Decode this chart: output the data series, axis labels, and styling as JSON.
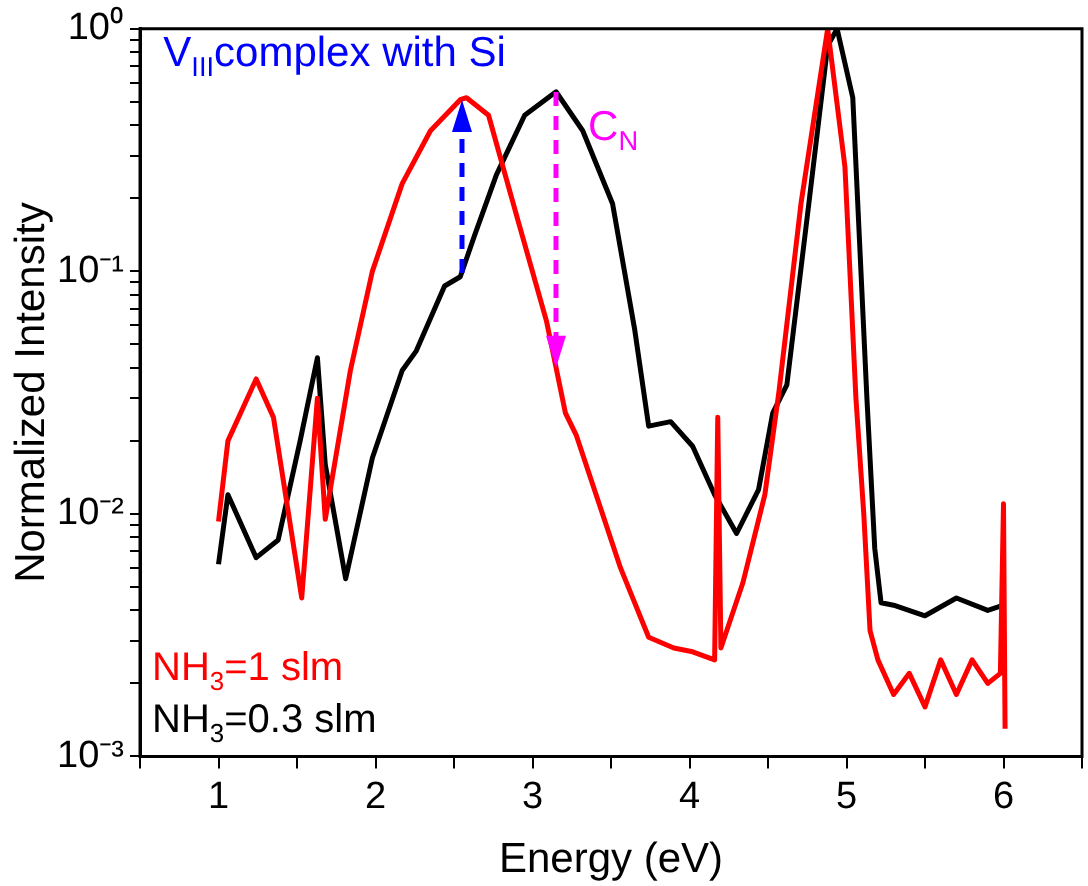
{
  "chart_data": {
    "type": "line",
    "xlabel": "Energy (eV)",
    "ylabel": "Normalized Intensity",
    "log": "y",
    "grid": false,
    "legend": "bottom left",
    "marker": "none",
    "line_style": "solid",
    "xlim": [
      0.5,
      6.5
    ],
    "xticks": [
      {
        "value": 0.5,
        "label": null
      },
      1,
      {
        "value": 1.5,
        "label": null
      },
      2,
      {
        "value": 2.5,
        "label": null
      },
      3,
      {
        "value": 3.5,
        "label": null
      },
      4,
      {
        "value": 4.5,
        "label": null
      },
      5,
      {
        "value": 5.5,
        "label": null
      },
      6,
      {
        "value": 6.5,
        "label": null
      }
    ],
    "ylim": [
      0.001,
      1
    ],
    "yticks": [
      {
        "value": 0.001,
        "label": "10⁻³"
      },
      {
        "value": 0.002,
        "label": null
      },
      {
        "value": 0.003,
        "label": null
      },
      {
        "value": 0.004,
        "label": null
      },
      {
        "value": 0.005,
        "label": null
      },
      {
        "value": 0.006,
        "label": null
      },
      {
        "value": 0.007,
        "label": null
      },
      {
        "value": 0.008,
        "label": null
      },
      {
        "value": 0.009,
        "label": null
      },
      {
        "value": 0.01,
        "label": "10⁻²"
      },
      {
        "value": 0.02,
        "label": null
      },
      {
        "value": 0.03,
        "label": null
      },
      {
        "value": 0.04,
        "label": null
      },
      {
        "value": 0.05,
        "label": null
      },
      {
        "value": 0.06,
        "label": null
      },
      {
        "value": 0.07,
        "label": null
      },
      {
        "value": 0.08,
        "label": null
      },
      {
        "value": 0.09,
        "label": null
      },
      {
        "value": 0.1,
        "label": "10⁻¹"
      },
      {
        "value": 0.2,
        "label": null
      },
      {
        "value": 0.3,
        "label": null
      },
      {
        "value": 0.4,
        "label": null
      },
      {
        "value": 0.5,
        "label": null
      },
      {
        "value": 0.6,
        "label": null
      },
      {
        "value": 0.7,
        "label": null
      },
      {
        "value": 0.8,
        "label": null
      },
      {
        "value": 0.9,
        "label": null
      },
      {
        "value": 1,
        "label": "10⁰"
      }
    ],
    "series": [
      {
        "name": "NH$_{3}$=1 slm",
        "color": "#ff0000",
        "x": [
          1.0,
          1.06,
          1.24,
          1.35,
          1.53,
          1.63,
          1.68,
          1.84,
          1.98,
          2.17,
          2.35,
          2.54,
          2.58,
          2.72,
          2.91,
          3.09,
          3.21,
          3.28,
          3.56,
          3.74,
          3.9,
          4.02,
          4.16,
          4.18,
          4.2,
          4.34,
          4.48,
          4.57,
          4.71,
          4.88,
          4.99,
          5.06,
          5.11,
          5.15,
          5.2,
          5.3,
          5.4,
          5.5,
          5.6,
          5.7,
          5.8,
          5.9,
          5.98,
          6.0,
          6.01
        ],
        "values": [
          0.0093,
          0.02,
          0.036,
          0.025,
          0.0045,
          0.03,
          0.0095,
          0.039,
          0.1,
          0.23,
          0.38,
          0.51,
          0.52,
          0.44,
          0.16,
          0.062,
          0.026,
          0.021,
          0.006,
          0.0031,
          0.0028,
          0.0027,
          0.0025,
          0.025,
          0.0028,
          0.0052,
          0.012,
          0.032,
          0.19,
          1,
          0.27,
          0.03,
          0.01,
          0.0033,
          0.0025,
          0.0018,
          0.0022,
          0.0016,
          0.0025,
          0.0018,
          0.0025,
          0.002,
          0.0022,
          0.011,
          0.0013
        ]
      },
      {
        "name": "NH$_{3}$=0.3 slm",
        "color": "#000000",
        "x": [
          1.0,
          1.06,
          1.24,
          1.38,
          1.52,
          1.63,
          1.68,
          1.81,
          1.98,
          2.17,
          2.26,
          2.44,
          2.54,
          2.63,
          2.77,
          2.95,
          3.15,
          3.32,
          3.51,
          3.65,
          3.74,
          3.88,
          4.02,
          4.16,
          4.3,
          4.44,
          4.53,
          4.62,
          4.76,
          4.88,
          4.94,
          5.04,
          5.13,
          5.18,
          5.22,
          5.3,
          5.5,
          5.7,
          5.9,
          6.0
        ],
        "values": [
          0.0062,
          0.012,
          0.0066,
          0.0078,
          0.02,
          0.044,
          0.016,
          0.0054,
          0.017,
          0.039,
          0.047,
          0.087,
          0.095,
          0.14,
          0.25,
          0.44,
          0.55,
          0.38,
          0.19,
          0.058,
          0.023,
          0.024,
          0.019,
          0.012,
          0.0083,
          0.0126,
          0.026,
          0.034,
          0.19,
          0.85,
          1,
          0.52,
          0.03,
          0.0072,
          0.0043,
          0.0042,
          0.0038,
          0.0045,
          0.004,
          0.0042
        ]
      }
    ],
    "annotations": [
      {
        "text": "V$_{III}$complex with Si",
        "x": 2.55,
        "y": 0.5
      },
      {
        "text": "C$_{N}$",
        "x": 3.15,
        "y": 0.55
      }
    ]
  }
}
